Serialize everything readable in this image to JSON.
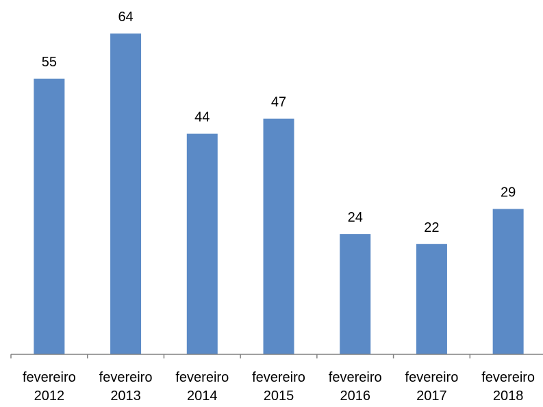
{
  "chart_data": {
    "type": "bar",
    "title": "",
    "xlabel": "",
    "ylabel": "",
    "categories": [
      [
        "fevereiro",
        "2012"
      ],
      [
        "fevereiro",
        "2013"
      ],
      [
        "fevereiro",
        "2014"
      ],
      [
        "fevereiro",
        "2015"
      ],
      [
        "fevereiro",
        "2016"
      ],
      [
        "fevereiro",
        "2017"
      ],
      [
        "fevereiro",
        "2018"
      ]
    ],
    "values": [
      55,
      64,
      44,
      47,
      24,
      22,
      29
    ],
    "data_labels": [
      "55",
      "64",
      "44",
      "47",
      "24",
      "22",
      "29"
    ],
    "ylim": [
      0,
      70
    ],
    "grid": false,
    "legend": "none",
    "bar_color": "#5b8ac6"
  }
}
